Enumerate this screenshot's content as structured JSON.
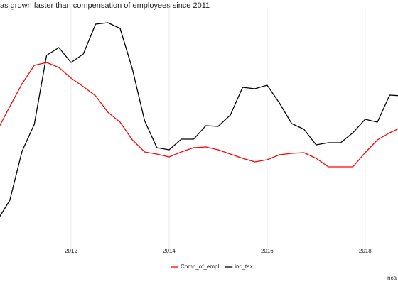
{
  "chart_data": {
    "type": "line",
    "title": "as grown faster than compensation of employees since 2011",
    "caption": "nca",
    "x": [
      2010.5,
      2010.75,
      2011,
      2011.25,
      2011.5,
      2011.75,
      2012,
      2012.25,
      2012.5,
      2012.75,
      2013,
      2013.25,
      2013.5,
      2013.75,
      2014,
      2014.25,
      2014.5,
      2014.75,
      2015,
      2015.25,
      2015.5,
      2015.75,
      2016,
      2016.25,
      2016.5,
      2016.75,
      2017,
      2017.25,
      2017.5,
      2017.75,
      2018,
      2018.25,
      2018.5,
      2018.75
    ],
    "series": [
      {
        "name": "Comp_of_empl",
        "color": "#ff0000",
        "values": [
          162,
          195,
          227,
          253,
          257,
          250,
          235,
          223,
          210,
          187,
          173,
          148,
          131,
          128,
          124,
          131,
          137,
          138,
          134,
          128,
          122,
          117,
          120,
          127,
          129,
          130,
          122,
          110,
          110,
          110,
          130,
          148,
          158,
          166
        ]
      },
      {
        "name": "inc_tax",
        "color": "#000000",
        "values": [
          35,
          63,
          132,
          170,
          267,
          278,
          257,
          269,
          311,
          313,
          305,
          248,
          175,
          137,
          134,
          149,
          149,
          168,
          167,
          183,
          222,
          220,
          225,
          200,
          171,
          163,
          141,
          144,
          144,
          158,
          177,
          173,
          211,
          210
        ]
      }
    ],
    "xlim": [
      2010.55,
      2018.67
    ],
    "xticks": [
      2012,
      2014,
      2016,
      2018
    ],
    "ylim": [
      0,
      335
    ],
    "grid": true
  }
}
